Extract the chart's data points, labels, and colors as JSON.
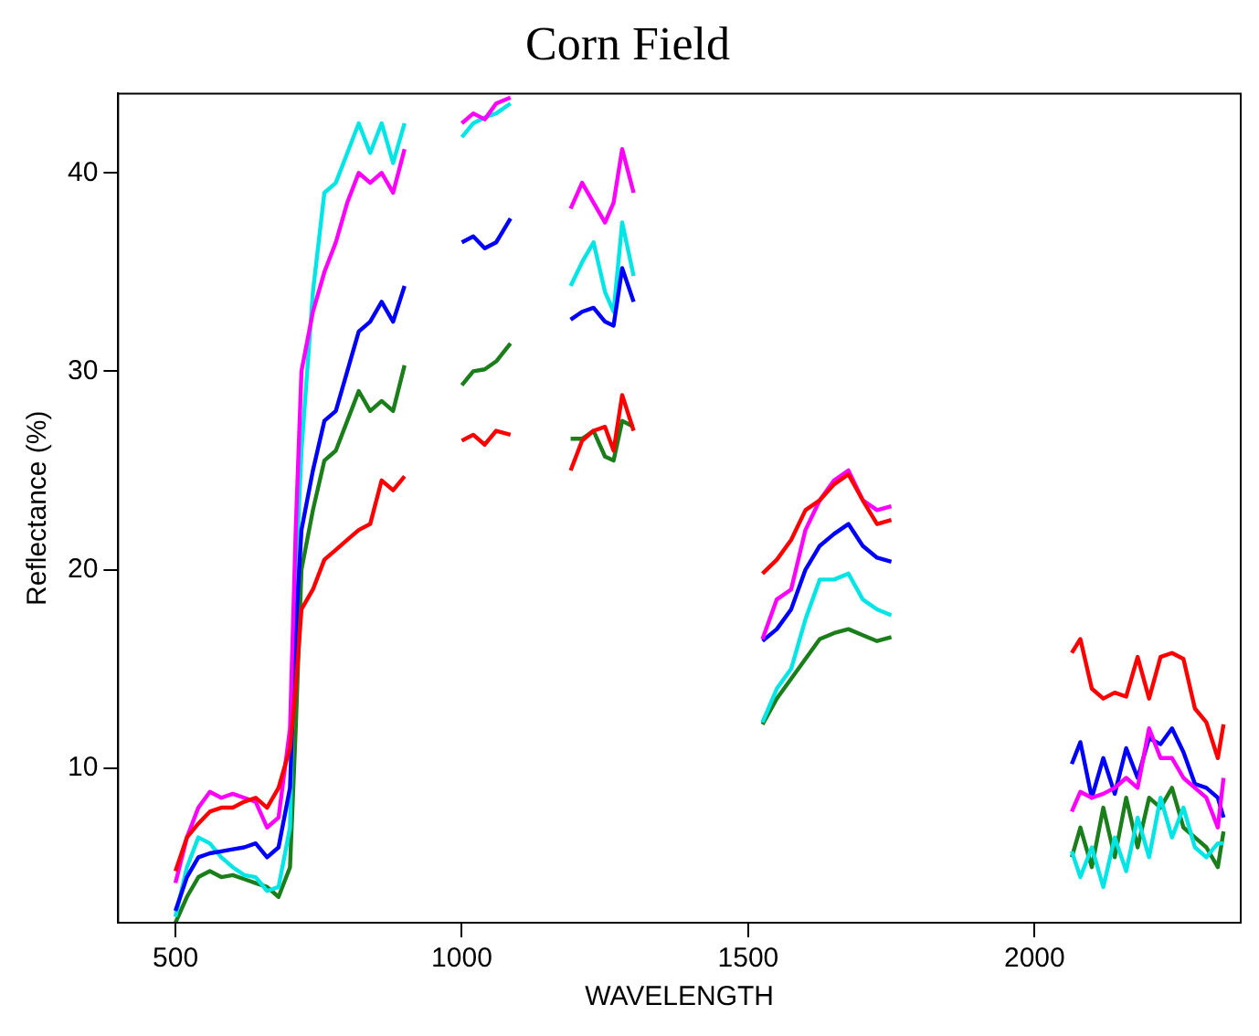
{
  "chart_data": {
    "type": "line",
    "title": "Corn Field",
    "xlabel": "WAVELENGTH",
    "ylabel": "Reflectance (%)",
    "x": [
      500,
      520,
      540,
      560,
      580,
      600,
      620,
      640,
      660,
      680,
      700,
      710,
      720,
      740,
      760,
      780,
      800,
      820,
      840,
      860,
      880,
      900,
      950,
      1000,
      1020,
      1040,
      1060,
      1085,
      1140,
      1190,
      1210,
      1230,
      1250,
      1265,
      1280,
      1300,
      1410,
      1525,
      1550,
      1575,
      1600,
      1625,
      1650,
      1675,
      1700,
      1725,
      1750,
      1910,
      2065,
      2080,
      2100,
      2120,
      2140,
      2160,
      2180,
      2200,
      2220,
      2240,
      2260,
      2280,
      2300,
      2320,
      2330
    ],
    "series": [
      {
        "color": "#ff0000",
        "values": [
          4.8,
          6.5,
          7.2,
          7.8,
          8.0,
          8.0,
          8.3,
          8.5,
          8.0,
          9,
          11,
          14,
          18,
          19,
          20.5,
          21,
          21.5,
          22,
          22.3,
          24.5,
          24,
          24.7,
          null,
          26.5,
          26.8,
          26.3,
          27.0,
          26.8,
          null,
          25,
          26.5,
          27,
          27.2,
          26,
          28.8,
          27,
          null,
          19.8,
          20.5,
          21.5,
          23,
          23.5,
          24.3,
          24.8,
          23.5,
          22.3,
          22.5,
          null,
          15.8,
          16.5,
          14,
          13.5,
          13.8,
          13.6,
          15.6,
          13.5,
          15.6,
          15.8,
          15.5,
          13,
          12.3,
          10.5,
          12.2
        ]
      },
      {
        "color": "#ff00ff",
        "values": [
          4.2,
          6.5,
          8.0,
          8.8,
          8.5,
          8.7,
          8.5,
          8.3,
          7.0,
          7.5,
          12,
          22,
          30,
          33,
          35,
          36.5,
          38.5,
          40,
          39.5,
          40,
          39,
          41.2,
          null,
          42.5,
          43,
          42.7,
          43.5,
          43.8,
          null,
          38.2,
          39.5,
          38.5,
          37.5,
          38.5,
          41.2,
          39,
          null,
          16.5,
          18.5,
          19,
          22,
          23.5,
          24.5,
          25,
          23.5,
          23,
          23.2,
          null,
          7.8,
          8.8,
          8.5,
          8.7,
          9,
          9.5,
          9,
          12,
          10.5,
          10.5,
          9.5,
          9,
          8.5,
          7.0,
          9.5
        ]
      },
      {
        "color": "#0000ff",
        "values": [
          2.8,
          4.5,
          5.5,
          5.7,
          5.8,
          5.9,
          6.0,
          6.2,
          5.5,
          6.0,
          9,
          17,
          22,
          25,
          27.5,
          28,
          30,
          32,
          32.5,
          33.5,
          32.5,
          34.3,
          null,
          36.5,
          36.8,
          36.2,
          36.5,
          37.7,
          null,
          32.6,
          33,
          33.2,
          32.5,
          32.3,
          35.2,
          33.5,
          null,
          16.4,
          17,
          18,
          20,
          21.2,
          21.8,
          22.3,
          21.2,
          20.6,
          20.4,
          null,
          10.2,
          11.3,
          8.5,
          10.5,
          8.7,
          11,
          9.5,
          11.5,
          11.2,
          12,
          10.8,
          9.2,
          9.0,
          8.5,
          7.5
        ]
      },
      {
        "color": "#00e5e5",
        "values": [
          2.5,
          5.0,
          6.5,
          6.2,
          5.5,
          5.0,
          4.6,
          4.5,
          3.8,
          4.0,
          7,
          19.5,
          26,
          34,
          39,
          39.5,
          41,
          42.5,
          41,
          42.5,
          40.5,
          42.5,
          null,
          41.8,
          42.5,
          42.8,
          43,
          43.5,
          null,
          34.3,
          35.5,
          36.5,
          34,
          33,
          37.5,
          34.8,
          null,
          12.3,
          14,
          15,
          17.5,
          19.5,
          19.5,
          19.8,
          18.5,
          18,
          17.7,
          null,
          5.8,
          4.5,
          6,
          4.0,
          6.5,
          4.8,
          7.5,
          5.5,
          8.5,
          6.5,
          8,
          6,
          5.5,
          6.2,
          6.2
        ]
      },
      {
        "color": "#1a7f1a",
        "values": [
          2.2,
          3.5,
          4.5,
          4.8,
          4.5,
          4.6,
          4.4,
          4.2,
          4.0,
          3.5,
          5,
          12,
          20,
          23,
          25.5,
          26,
          27.5,
          29,
          28,
          28.5,
          28,
          30.3,
          null,
          29.3,
          30,
          30.1,
          30.5,
          31.4,
          null,
          26.6,
          26.6,
          27,
          25.7,
          25.5,
          27.5,
          27.2,
          null,
          12.2,
          13.5,
          14.5,
          15.5,
          16.5,
          16.8,
          17,
          16.7,
          16.4,
          16.6,
          null,
          5.5,
          7,
          5,
          8,
          5.5,
          8.5,
          6,
          8.5,
          8,
          9,
          7,
          6.5,
          6,
          5,
          6.8
        ]
      }
    ],
    "xlim": [
      400,
      2360
    ],
    "xticks": [
      500,
      1000,
      1500,
      2000
    ],
    "ylim": [
      2.2,
      44
    ],
    "yticks": [
      10,
      20,
      30,
      40
    ],
    "grid": false,
    "legend": false,
    "marker": "none",
    "line_style": "solid"
  }
}
